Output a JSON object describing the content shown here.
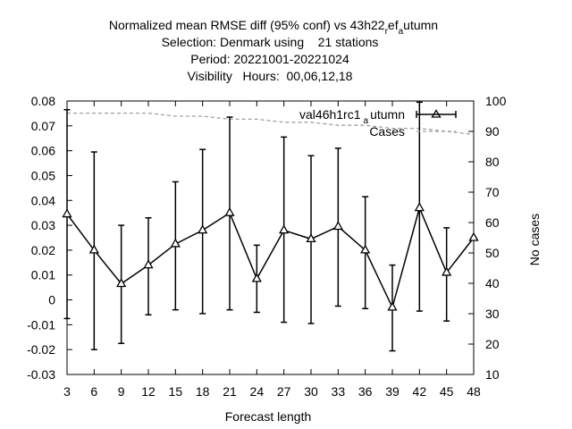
{
  "chart_data": {
    "type": "line",
    "title_lines": [
      "Normalized mean RMSE diff (95% conf) vs 43h22",
      "Selection: Denmark using    21 stations",
      "Period: 20221001-20221024",
      "Visibility   Hours:  00,06,12,18"
    ],
    "title_sub1": "r",
    "title_mid": "ef",
    "title_sub2": "a",
    "title_tail": "utumn",
    "xlabel": "Forecast length",
    "ylabel_right": "No cases",
    "x": [
      3,
      6,
      9,
      12,
      15,
      18,
      21,
      24,
      27,
      30,
      33,
      36,
      39,
      42,
      45,
      48
    ],
    "xticks": [
      "3",
      "6",
      "9",
      "12",
      "15",
      "18",
      "21",
      "24",
      "27",
      "30",
      "33",
      "36",
      "39",
      "42",
      "45",
      "48"
    ],
    "yticks_left": [
      "-0.03",
      "-0.02",
      "-0.01",
      "0",
      "0.01",
      "0.02",
      "0.03",
      "0.04",
      "0.05",
      "0.06",
      "0.07",
      "0.08"
    ],
    "yticks_right": [
      "10",
      "20",
      "30",
      "40",
      "50",
      "60",
      "70",
      "80",
      "90",
      "100"
    ],
    "ylim_left": [
      -0.03,
      0.08
    ],
    "ylim_right": [
      10,
      100
    ],
    "series": [
      {
        "name": "val46h1rc1",
        "name_sub": "a",
        "name_tail": "utumn",
        "values": [
          0.0345,
          0.02,
          0.0065,
          0.014,
          0.0225,
          0.028,
          0.035,
          0.0085,
          0.028,
          0.0245,
          0.0295,
          0.02,
          -0.003,
          0.037,
          0.011,
          0.025
        ],
        "err_low": [
          -0.0075,
          -0.02,
          -0.0175,
          -0.006,
          -0.004,
          -0.0055,
          -0.004,
          -0.005,
          -0.009,
          -0.0095,
          -0.0025,
          -0.0035,
          -0.0205,
          -0.0045,
          -0.0085,
          0.025
        ],
        "err_high": [
          0.0765,
          0.0595,
          0.03,
          0.033,
          0.0475,
          0.0605,
          0.0735,
          0.022,
          0.0655,
          0.058,
          0.061,
          0.0415,
          0.014,
          0.0795,
          0.029,
          0.025
        ],
        "color": "#000000"
      },
      {
        "name": "Cases",
        "axis": "right",
        "values": [
          96,
          96,
          96,
          96,
          95,
          95,
          94,
          94,
          93,
          93,
          92,
          92,
          91,
          91,
          90,
          89
        ],
        "color": "#a0a0a0",
        "dash": true
      }
    ],
    "grid": false,
    "legend_position": "top-right"
  }
}
